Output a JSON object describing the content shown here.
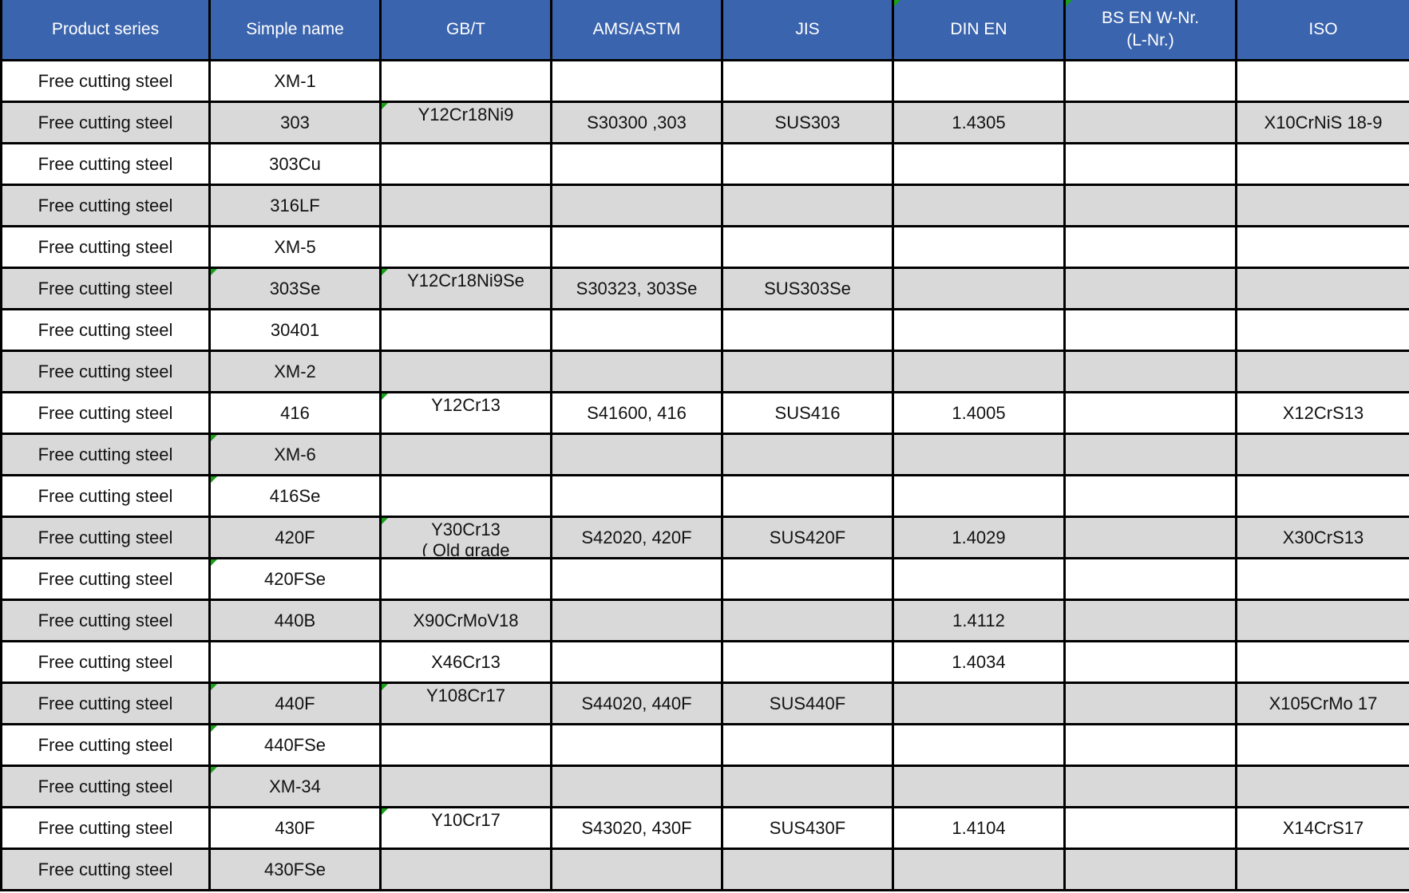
{
  "page": {
    "background": "#ffffff"
  },
  "colors": {
    "header_bg": "#3a64ad",
    "header_text": "#ffffff",
    "row_bg": "#ffffff",
    "row_alt_bg": "#d9d9d9",
    "border": "#000000",
    "text": "#121212",
    "comment_marker_green": "#18a018"
  },
  "table": {
    "columns": [
      {
        "key": "series",
        "label": "Product series",
        "marker": false
      },
      {
        "key": "simple",
        "label": "Simple name",
        "marker": false
      },
      {
        "key": "gbt",
        "label": "GB/T",
        "marker": false
      },
      {
        "key": "ams",
        "label": "AMS/ASTM",
        "marker": false
      },
      {
        "key": "jis",
        "label": "JIS",
        "marker": false
      },
      {
        "key": "din",
        "label": "DIN EN",
        "marker": true
      },
      {
        "key": "bs",
        "label": "BS EN W-Nr.\n(L-Nr.)",
        "marker": true
      },
      {
        "key": "iso",
        "label": "ISO",
        "marker": false
      }
    ],
    "rows": [
      {
        "shade": "even",
        "gbt_top": false,
        "gbt_line2": "",
        "markers": [],
        "cells": {
          "series": "Free cutting steel",
          "simple": "XM-1",
          "gbt": "",
          "ams": "",
          "jis": "",
          "din": "",
          "bs": "",
          "iso": ""
        }
      },
      {
        "shade": "odd",
        "gbt_top": true,
        "gbt_line2": "",
        "markers": [
          "gbt"
        ],
        "cells": {
          "series": "Free cutting steel",
          "simple": "303",
          "gbt": "Y12Cr18Ni9",
          "ams": "S30300 ,303",
          "jis": "SUS303",
          "din": "1.4305",
          "bs": "",
          "iso": "X10CrNiS 18-9"
        }
      },
      {
        "shade": "even",
        "gbt_top": false,
        "gbt_line2": "",
        "markers": [],
        "cells": {
          "series": "Free cutting steel",
          "simple": "303Cu",
          "gbt": "",
          "ams": "",
          "jis": "",
          "din": "",
          "bs": "",
          "iso": ""
        }
      },
      {
        "shade": "odd",
        "gbt_top": false,
        "gbt_line2": "",
        "markers": [],
        "cells": {
          "series": "Free cutting steel",
          "simple": "316LF",
          "gbt": "",
          "ams": "",
          "jis": "",
          "din": "",
          "bs": "",
          "iso": ""
        }
      },
      {
        "shade": "even",
        "gbt_top": false,
        "gbt_line2": "",
        "markers": [],
        "cells": {
          "series": "Free cutting steel",
          "simple": "XM-5",
          "gbt": "",
          "ams": "",
          "jis": "",
          "din": "",
          "bs": "",
          "iso": ""
        }
      },
      {
        "shade": "odd",
        "gbt_top": true,
        "gbt_line2": "",
        "markers": [
          "simple",
          "gbt"
        ],
        "cells": {
          "series": "Free cutting steel",
          "simple": "303Se",
          "gbt": "Y12Cr18Ni9Se",
          "ams": "S30323, 303Se",
          "jis": "SUS303Se",
          "din": "",
          "bs": "",
          "iso": ""
        }
      },
      {
        "shade": "even",
        "gbt_top": false,
        "gbt_line2": "",
        "markers": [],
        "cells": {
          "series": "Free cutting steel",
          "simple": "30401",
          "gbt": "",
          "ams": "",
          "jis": "",
          "din": "",
          "bs": "",
          "iso": ""
        }
      },
      {
        "shade": "odd",
        "gbt_top": false,
        "gbt_line2": "",
        "markers": [],
        "cells": {
          "series": "Free cutting steel",
          "simple": "XM-2",
          "gbt": "",
          "ams": "",
          "jis": "",
          "din": "",
          "bs": "",
          "iso": ""
        }
      },
      {
        "shade": "even",
        "gbt_top": true,
        "gbt_line2": "",
        "markers": [
          "gbt"
        ],
        "cells": {
          "series": "Free cutting steel",
          "simple": "416",
          "gbt": "Y12Cr13",
          "ams": "S41600, 416",
          "jis": "SUS416",
          "din": "1.4005",
          "bs": "",
          "iso": "X12CrS13"
        }
      },
      {
        "shade": "odd",
        "gbt_top": false,
        "gbt_line2": "",
        "markers": [
          "simple"
        ],
        "cells": {
          "series": "Free cutting steel",
          "simple": "XM-6",
          "gbt": "",
          "ams": "",
          "jis": "",
          "din": "",
          "bs": "",
          "iso": ""
        }
      },
      {
        "shade": "even",
        "gbt_top": false,
        "gbt_line2": "",
        "markers": [
          "simple"
        ],
        "cells": {
          "series": "Free cutting steel",
          "simple": "416Se",
          "gbt": "",
          "ams": "",
          "jis": "",
          "din": "",
          "bs": "",
          "iso": ""
        }
      },
      {
        "shade": "odd",
        "gbt_top": true,
        "gbt_line2": "( Old grade",
        "markers": [
          "gbt"
        ],
        "cells": {
          "series": "Free cutting steel",
          "simple": "420F",
          "gbt": "Y30Cr13",
          "ams": "S42020, 420F",
          "jis": "SUS420F",
          "din": "1.4029",
          "bs": "",
          "iso": "X30CrS13"
        }
      },
      {
        "shade": "even",
        "gbt_top": false,
        "gbt_line2": "",
        "markers": [
          "simple"
        ],
        "cells": {
          "series": "Free cutting steel",
          "simple": "420FSe",
          "gbt": "",
          "ams": "",
          "jis": "",
          "din": "",
          "bs": "",
          "iso": ""
        }
      },
      {
        "shade": "odd",
        "gbt_top": false,
        "gbt_line2": "",
        "markers": [],
        "cells": {
          "series": "Free cutting steel",
          "simple": "440B",
          "gbt": "X90CrMoV18",
          "ams": "",
          "jis": "",
          "din": "1.4112",
          "bs": "",
          "iso": ""
        }
      },
      {
        "shade": "even",
        "gbt_top": false,
        "gbt_line2": "",
        "markers": [],
        "cells": {
          "series": "Free cutting steel",
          "simple": "",
          "gbt": "X46Cr13",
          "ams": "",
          "jis": "",
          "din": "1.4034",
          "bs": "",
          "iso": ""
        }
      },
      {
        "shade": "odd",
        "gbt_top": true,
        "gbt_line2": "",
        "markers": [
          "simple",
          "gbt"
        ],
        "cells": {
          "series": "Free cutting steel",
          "simple": "440F",
          "gbt": "Y108Cr17",
          "ams": "S44020, 440F",
          "jis": "SUS440F",
          "din": "",
          "bs": "",
          "iso": "X105CrMo 17"
        }
      },
      {
        "shade": "even",
        "gbt_top": false,
        "gbt_line2": "",
        "markers": [
          "simple"
        ],
        "cells": {
          "series": "Free cutting steel",
          "simple": "440FSe",
          "gbt": "",
          "ams": "",
          "jis": "",
          "din": "",
          "bs": "",
          "iso": ""
        }
      },
      {
        "shade": "odd",
        "gbt_top": false,
        "gbt_line2": "",
        "markers": [
          "simple"
        ],
        "cells": {
          "series": "Free cutting steel",
          "simple": "XM-34",
          "gbt": "",
          "ams": "",
          "jis": "",
          "din": "",
          "bs": "",
          "iso": ""
        }
      },
      {
        "shade": "even",
        "gbt_top": true,
        "gbt_line2": "",
        "markers": [
          "gbt"
        ],
        "cells": {
          "series": "Free cutting steel",
          "simple": "430F",
          "gbt": "Y10Cr17",
          "ams": "S43020, 430F",
          "jis": "SUS430F",
          "din": "1.4104",
          "bs": "",
          "iso": "X14CrS17"
        }
      },
      {
        "shade": "odd",
        "gbt_top": false,
        "gbt_line2": "",
        "markers": [],
        "cells": {
          "series": "Free cutting steel",
          "simple": "430FSe",
          "gbt": "",
          "ams": "",
          "jis": "",
          "din": "",
          "bs": "",
          "iso": ""
        }
      }
    ]
  }
}
